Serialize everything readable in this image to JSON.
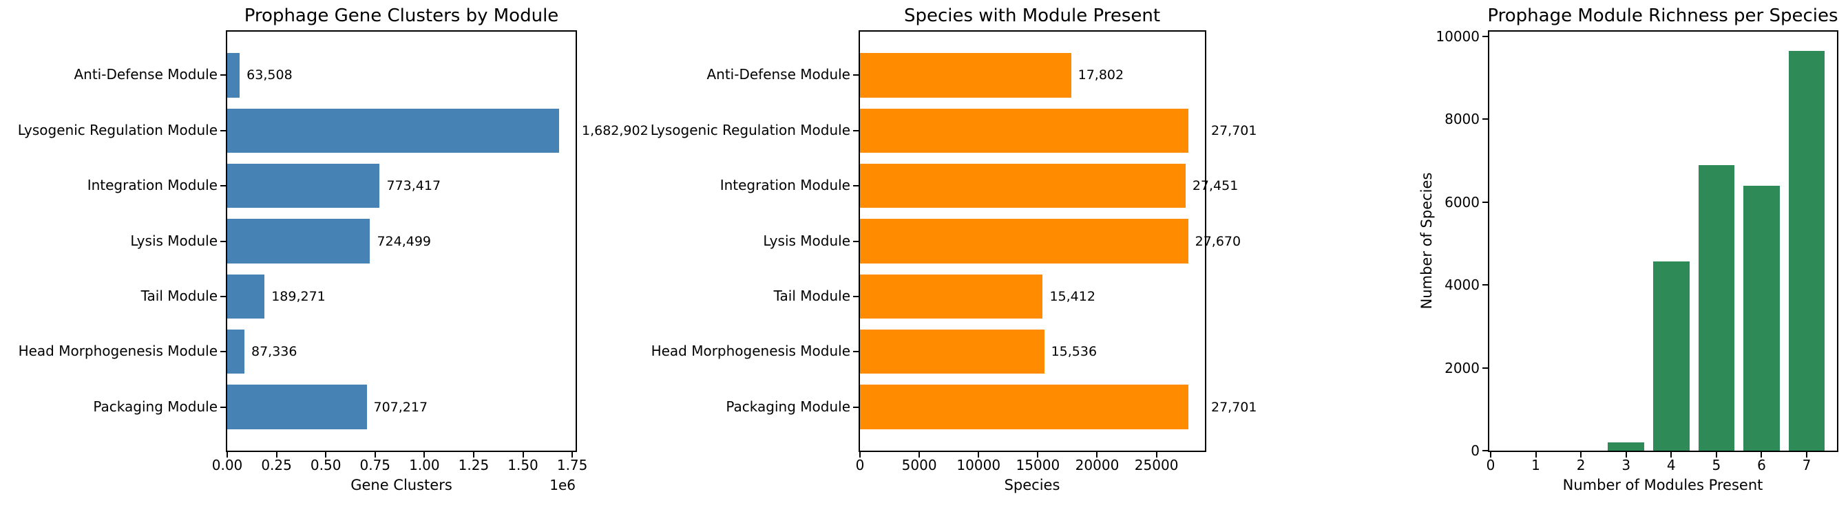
{
  "figure": {
    "background": "#ffffff"
  },
  "chart_data": [
    {
      "id": "gene-clusters-by-module",
      "type": "bar",
      "orientation": "horizontal",
      "title": "Prophage Gene Clusters by Module",
      "xlabel": "Gene Clusters",
      "axis_offset_text": "1e6",
      "categories": [
        "Anti-Defense Module",
        "Lysogenic Regulation Module",
        "Integration Module",
        "Lysis Module",
        "Tail Module",
        "Head Morphogenesis Module",
        "Packaging Module"
      ],
      "values": [
        63508,
        1682902,
        773417,
        724499,
        189271,
        87336,
        707217
      ],
      "value_labels": [
        "63,508",
        "1,682,902",
        "773,417",
        "724,499",
        "189,271",
        "87,336",
        "707,217"
      ],
      "bar_color": "#4682b4",
      "xlim": [
        0,
        1767047
      ],
      "xticks": [
        0,
        250000,
        500000,
        750000,
        1000000,
        1250000,
        1500000,
        1750000
      ],
      "xtick_labels": [
        "0.00",
        "0.25",
        "0.50",
        "0.75",
        "1.00",
        "1.25",
        "1.50",
        "1.75"
      ],
      "grid": false,
      "legend": null
    },
    {
      "id": "species-with-module-present",
      "type": "bar",
      "orientation": "horizontal",
      "title": "Species with Module Present",
      "xlabel": "Species",
      "axis_offset_text": "",
      "categories": [
        "Anti-Defense Module",
        "Lysogenic Regulation Module",
        "Integration Module",
        "Lysis Module",
        "Tail Module",
        "Head Morphogenesis Module",
        "Packaging Module"
      ],
      "values": [
        17802,
        27701,
        27451,
        27670,
        15412,
        15536,
        27701
      ],
      "value_labels": [
        "17,802",
        "27,701",
        "27,451",
        "27,670",
        "15,412",
        "15,536",
        "27,701"
      ],
      "bar_color": "#ff8c00",
      "xlim": [
        0,
        29086
      ],
      "xticks": [
        0,
        5000,
        10000,
        15000,
        20000,
        25000
      ],
      "xtick_labels": [
        "0",
        "5000",
        "10000",
        "15000",
        "20000",
        "25000"
      ],
      "grid": false,
      "legend": null
    },
    {
      "id": "module-richness-per-species",
      "type": "bar",
      "orientation": "vertical",
      "title": "Prophage Module Richness per Species",
      "xlabel": "Number of Modules Present",
      "ylabel": "Number of Species",
      "x": [
        0,
        1,
        2,
        3,
        4,
        5,
        6,
        7
      ],
      "xtick_labels": [
        "0",
        "1",
        "2",
        "3",
        "4",
        "5",
        "6",
        "7"
      ],
      "values": [
        0,
        0,
        0,
        200,
        4560,
        6900,
        6390,
        9650
      ],
      "bar_color": "#2e8b57",
      "bar_width": 0.8,
      "xlim": [
        -0.03,
        7.67
      ],
      "ylim": [
        0,
        10114
      ],
      "yticks": [
        0,
        2000,
        4000,
        6000,
        8000,
        10000
      ],
      "ytick_labels": [
        "0",
        "2000",
        "4000",
        "6000",
        "8000",
        "10000"
      ],
      "grid": false,
      "legend": null
    }
  ]
}
